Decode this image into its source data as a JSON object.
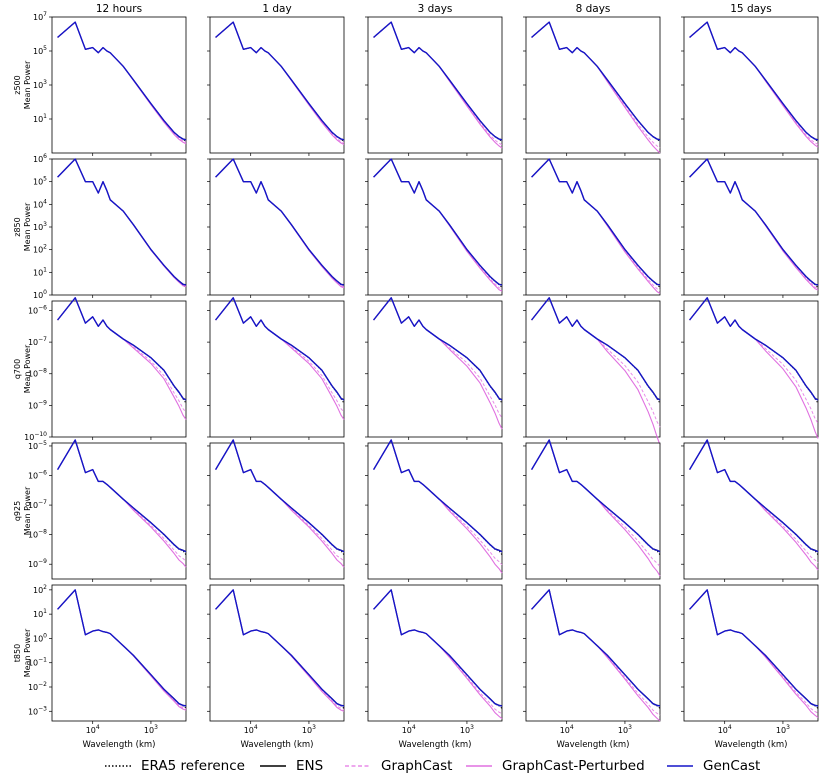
{
  "chart_data": {
    "type": "line",
    "x_axis": {
      "label": "Wavelength (km)",
      "scale": "log",
      "reversed": true,
      "range_km": [
        50000,
        250
      ],
      "tick_labels": [
        "10^4",
        "10^3"
      ]
    },
    "columns": [
      "12 hours",
      "1 day",
      "3 days",
      "8 days",
      "15 days"
    ],
    "rows": [
      {
        "var": "z500",
        "ylabel_lines": [
          "z500",
          "Mean Power"
        ],
        "ylim_exp": [
          -1,
          7
        ],
        "tick_exps": [
          1,
          3,
          5,
          7
        ]
      },
      {
        "var": "z850",
        "ylabel_lines": [
          "z850",
          "Mean Power"
        ],
        "ylim_exp": [
          0,
          6
        ],
        "tick_exps": [
          0,
          1,
          2,
          3,
          4,
          5,
          6
        ]
      },
      {
        "var": "q700",
        "ylabel_lines": [
          "q700",
          "Mean Power"
        ],
        "ylim_exp": [
          -10,
          -5.7
        ],
        "tick_exps": [
          -10,
          -9,
          -8,
          -7,
          -6
        ]
      },
      {
        "var": "q925",
        "ylabel_lines": [
          "q925",
          "Mean Power"
        ],
        "ylim_exp": [
          -9.5,
          -4.9
        ],
        "tick_exps": [
          -9,
          -8,
          -7,
          -6,
          -5
        ]
      },
      {
        "var": "t850",
        "ylabel_lines": [
          "t850",
          "Mean Power"
        ],
        "ylim_exp": [
          -3.4,
          2.2
        ],
        "tick_exps": [
          -3,
          -2,
          -1,
          0,
          1,
          2
        ]
      }
    ],
    "x_wavelengths_km": [
      40000,
      20000,
      13333,
      10000,
      8000,
      6667,
      5714,
      5000,
      3000,
      2000,
      1000,
      600,
      400,
      330,
      280,
      250
    ],
    "base_curves_log10": {
      "z500": [
        5.8,
        6.7,
        5.1,
        5.2,
        4.9,
        5.2,
        5.0,
        4.9,
        4.1,
        3.3,
        1.9,
        0.9,
        0.2,
        -0.05,
        -0.2,
        -0.25
      ],
      "z850": [
        5.2,
        6.0,
        5.0,
        5.0,
        4.5,
        5.0,
        4.6,
        4.2,
        3.7,
        3.1,
        2.0,
        1.3,
        0.8,
        0.6,
        0.45,
        0.42
      ],
      "q700": [
        -6.3,
        -5.6,
        -6.4,
        -6.2,
        -6.5,
        -6.3,
        -6.5,
        -6.6,
        -6.9,
        -7.1,
        -7.5,
        -7.9,
        -8.4,
        -8.6,
        -8.8,
        -8.85
      ],
      "q925": [
        -5.8,
        -4.8,
        -5.9,
        -5.8,
        -6.2,
        -6.2,
        -6.3,
        -6.4,
        -6.8,
        -7.1,
        -7.6,
        -8.0,
        -8.35,
        -8.5,
        -8.55,
        -8.6
      ],
      "t850": [
        1.2,
        2.0,
        0.15,
        0.3,
        0.35,
        0.28,
        0.25,
        0.2,
        -0.3,
        -0.7,
        -1.5,
        -2.1,
        -2.5,
        -2.7,
        -2.78,
        -2.8
      ]
    },
    "graphcast_tail_drop_log10": {
      "z500": [
        0.2,
        0.25,
        0.45,
        0.75,
        0.4
      ],
      "z850": [
        0.05,
        0.1,
        0.25,
        0.35,
        0.2
      ],
      "q700": [
        0.6,
        0.6,
        0.9,
        1.4,
        1.2
      ],
      "q925": [
        0.5,
        0.5,
        0.7,
        0.8,
        0.6
      ],
      "t850": [
        0.15,
        0.2,
        0.5,
        0.6,
        0.45
      ]
    },
    "series": [
      {
        "name": "ERA5 reference",
        "color": "#000000",
        "style": "dotted"
      },
      {
        "name": "ENS",
        "color": "#000000",
        "style": "solid"
      },
      {
        "name": "GraphCast",
        "color": "#e88be8",
        "style": "dashed"
      },
      {
        "name": "GraphCast-Perturbed",
        "color": "#e070e0",
        "style": "solid"
      },
      {
        "name": "GenCast",
        "color": "#1515c8",
        "style": "solid"
      }
    ]
  }
}
